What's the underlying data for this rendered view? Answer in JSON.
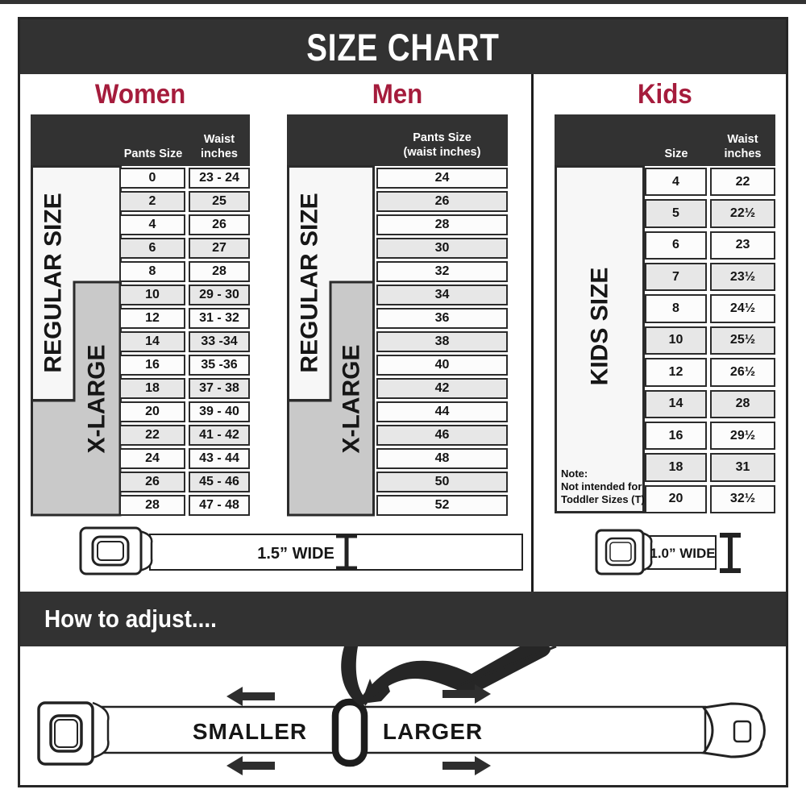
{
  "colors": {
    "dark": "#323232",
    "red": "#a51c3c",
    "gray_box": "#c9c9c9",
    "white_box": "#f7f7f7"
  },
  "title": "SIZE CHART",
  "women": {
    "title": "Women",
    "col_size_header": "Pants Size",
    "col_waist_header_1": "Waist",
    "col_waist_header_2": "inches",
    "regular_label": "REGULAR SIZE",
    "xlarge_label": "X-LARGE",
    "rows": [
      {
        "size": "0",
        "waist": "23 - 24"
      },
      {
        "size": "2",
        "waist": "25"
      },
      {
        "size": "4",
        "waist": "26"
      },
      {
        "size": "6",
        "waist": "27"
      },
      {
        "size": "8",
        "waist": "28"
      },
      {
        "size": "10",
        "waist": "29 - 30"
      },
      {
        "size": "12",
        "waist": "31 - 32"
      },
      {
        "size": "14",
        "waist": "33 -34"
      },
      {
        "size": "16",
        "waist": "35 -36"
      },
      {
        "size": "18",
        "waist": "37 - 38"
      },
      {
        "size": "20",
        "waist": "39 - 40"
      },
      {
        "size": "22",
        "waist": "41 - 42"
      },
      {
        "size": "24",
        "waist": "43 - 44"
      },
      {
        "size": "26",
        "waist": "45 - 46"
      },
      {
        "size": "28",
        "waist": "47 - 48"
      }
    ]
  },
  "men": {
    "title": "Men",
    "col_header_1": "Pants Size",
    "col_header_2": "(waist inches)",
    "regular_label": "REGULAR SIZE",
    "xlarge_label": "X-LARGE",
    "rows": [
      "24",
      "26",
      "28",
      "30",
      "32",
      "34",
      "36",
      "38",
      "40",
      "42",
      "44",
      "46",
      "48",
      "50",
      "52"
    ]
  },
  "kids": {
    "title": "Kids",
    "col_size_header": "Size",
    "col_waist_header_1": "Waist",
    "col_waist_header_2": "inches",
    "label": "KIDS SIZE",
    "note_line_1": "Note:",
    "note_line_2": "Not intended for",
    "note_line_3": "Toddler Sizes (T)",
    "rows": [
      {
        "size": "4",
        "waist": "22"
      },
      {
        "size": "5",
        "waist": "22½"
      },
      {
        "size": "6",
        "waist": "23"
      },
      {
        "size": "7",
        "waist": "23½"
      },
      {
        "size": "8",
        "waist": "24½"
      },
      {
        "size": "10",
        "waist": "25½"
      },
      {
        "size": "12",
        "waist": "26½"
      },
      {
        "size": "14",
        "waist": "28"
      },
      {
        "size": "16",
        "waist": "29½"
      },
      {
        "size": "18",
        "waist": "31"
      },
      {
        "size": "20",
        "waist": "32½"
      }
    ]
  },
  "belts": {
    "adult_width_label": "1.5” WIDE",
    "kids_width_label": "1.0” WIDE"
  },
  "adjust": {
    "heading": "How to adjust....",
    "smaller": "SMALLER",
    "larger": "LARGER"
  }
}
